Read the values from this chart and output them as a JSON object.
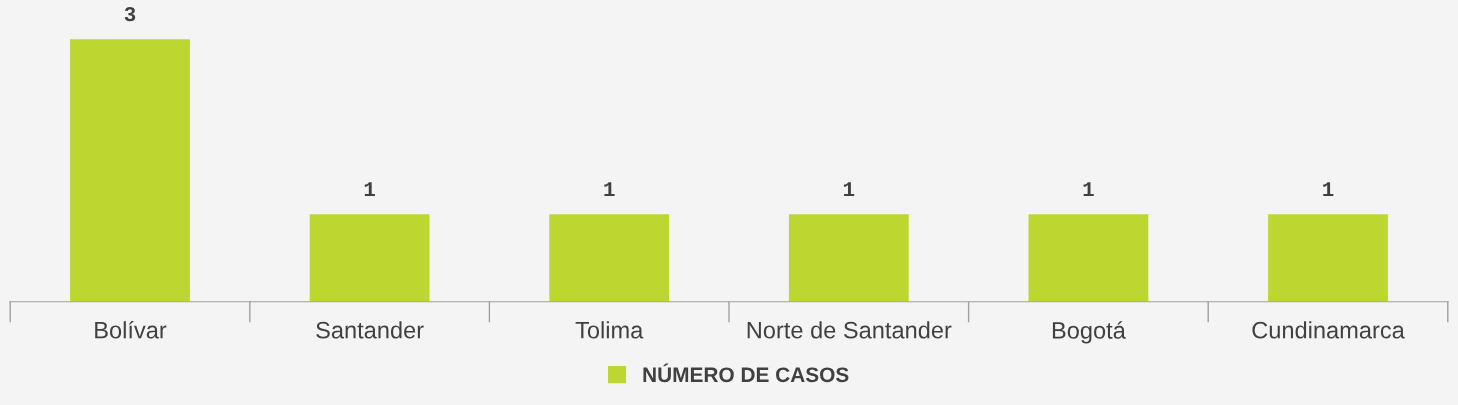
{
  "chart_data": {
    "type": "bar",
    "categories": [
      "Bolívar",
      "Santander",
      "Tolima",
      "Norte de Santander",
      "Bogotá",
      "Cundinamarca"
    ],
    "series": [
      {
        "name": "NÚMERO DE CASOS",
        "color": "#bed630",
        "values": [
          3,
          1,
          1,
          1,
          1,
          1
        ]
      }
    ],
    "data_labels": true,
    "grid": false,
    "legend": "bottom",
    "tick_labels": "x"
  }
}
